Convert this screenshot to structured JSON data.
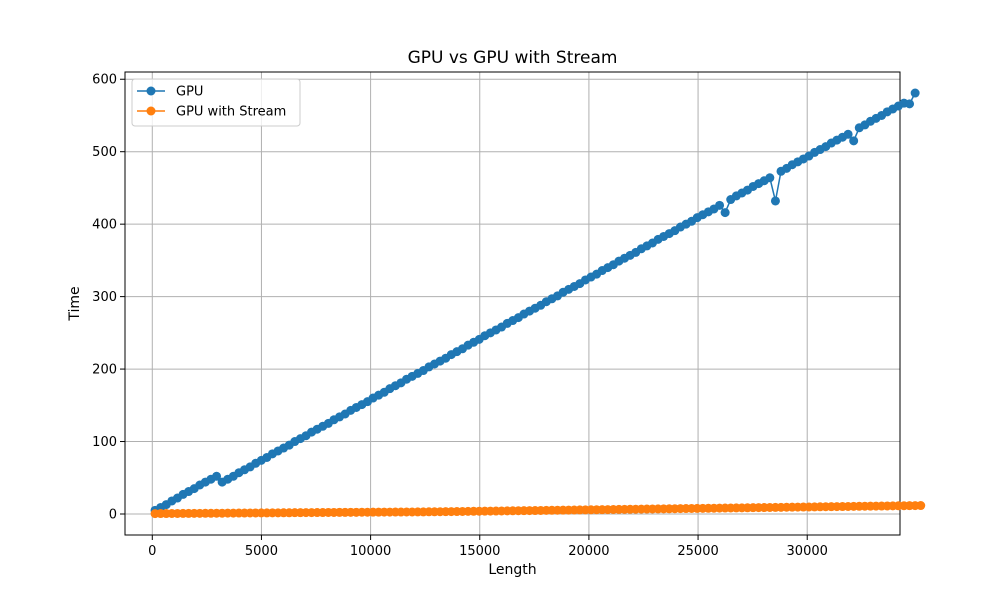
{
  "chart_data": {
    "type": "line",
    "title": "GPU vs GPU with Stream",
    "xlabel": "Length",
    "ylabel": "Time",
    "xlim": [
      -1250,
      34250
    ],
    "ylim": [
      -29,
      610
    ],
    "xticks": [
      0,
      5000,
      10000,
      15000,
      20000,
      25000,
      30000
    ],
    "yticks": [
      0,
      100,
      200,
      300,
      400,
      500,
      600
    ],
    "grid": true,
    "legend_position": "upper-left",
    "marker": "circle",
    "x_start": 128,
    "x_step": 256,
    "series": [
      {
        "name": "GPU",
        "color": "#1f77b4",
        "values": [
          5,
          9,
          13,
          18,
          22,
          27,
          31,
          35,
          40,
          44,
          48,
          52,
          44,
          48,
          52,
          57,
          61,
          65,
          70,
          74,
          78,
          83,
          87,
          91,
          95,
          100,
          104,
          108,
          113,
          117,
          121,
          125,
          130,
          134,
          138,
          143,
          147,
          151,
          155,
          160,
          164,
          168,
          173,
          177,
          181,
          186,
          190,
          194,
          198,
          203,
          207,
          211,
          215,
          220,
          224,
          228,
          233,
          237,
          241,
          246,
          250,
          254,
          258,
          263,
          267,
          271,
          276,
          280,
          284,
          288,
          293,
          297,
          301,
          306,
          310,
          314,
          318,
          323,
          327,
          331,
          336,
          340,
          344,
          349,
          353,
          357,
          361,
          366,
          370,
          374,
          379,
          383,
          387,
          391,
          396,
          400,
          404,
          409,
          413,
          417,
          421,
          426,
          416,
          434,
          439,
          443,
          447,
          452,
          456,
          460,
          464,
          432,
          473,
          477,
          482,
          486,
          490,
          494,
          499,
          503,
          507,
          512,
          516,
          520,
          524,
          515,
          533,
          537,
          542,
          546,
          550,
          555,
          559,
          563,
          567,
          566,
          581
        ]
      },
      {
        "name": "GPU with Stream",
        "color": "#ff7f0e",
        "values": [
          0.5,
          0.6,
          0.6,
          0.7,
          0.7,
          0.8,
          0.8,
          0.9,
          0.9,
          1.0,
          1.0,
          1.1,
          1.1,
          1.2,
          1.2,
          1.3,
          1.3,
          1.4,
          1.4,
          1.5,
          1.5,
          1.6,
          1.6,
          1.7,
          1.7,
          1.8,
          1.8,
          1.9,
          1.9,
          2.0,
          2.0,
          2.1,
          2.1,
          2.2,
          2.2,
          2.3,
          2.3,
          2.4,
          2.4,
          2.5,
          2.5,
          2.6,
          2.6,
          2.7,
          2.7,
          2.8,
          2.8,
          2.9,
          2.9,
          3.0,
          3.0,
          3.1,
          3.2,
          3.3,
          3.4,
          3.5,
          3.6,
          3.7,
          3.8,
          3.9,
          4.0,
          4.1,
          4.2,
          4.3,
          4.4,
          4.5,
          4.6,
          4.7,
          4.8,
          4.9,
          5.0,
          5.1,
          5.2,
          5.3,
          5.4,
          5.5,
          5.6,
          5.7,
          5.8,
          5.9,
          6.0,
          6.1,
          6.2,
          6.3,
          6.4,
          6.5,
          6.6,
          6.7,
          6.8,
          6.9,
          7.0,
          7.1,
          7.2,
          7.3,
          7.4,
          7.5,
          7.6,
          7.7,
          7.8,
          7.9,
          8.0,
          8.1,
          8.2,
          8.3,
          8.4,
          8.5,
          8.6,
          8.7,
          8.8,
          8.9,
          9.0,
          9.1,
          9.2,
          9.3,
          9.4,
          9.5,
          9.6,
          9.7,
          9.8,
          9.9,
          10.0,
          10.1,
          10.2,
          10.3,
          10.4,
          10.5,
          10.6,
          10.7,
          10.8,
          10.9,
          11.0,
          11.1,
          11.2,
          11.3,
          11.4,
          11.5,
          11.6,
          11.7
        ]
      }
    ]
  }
}
